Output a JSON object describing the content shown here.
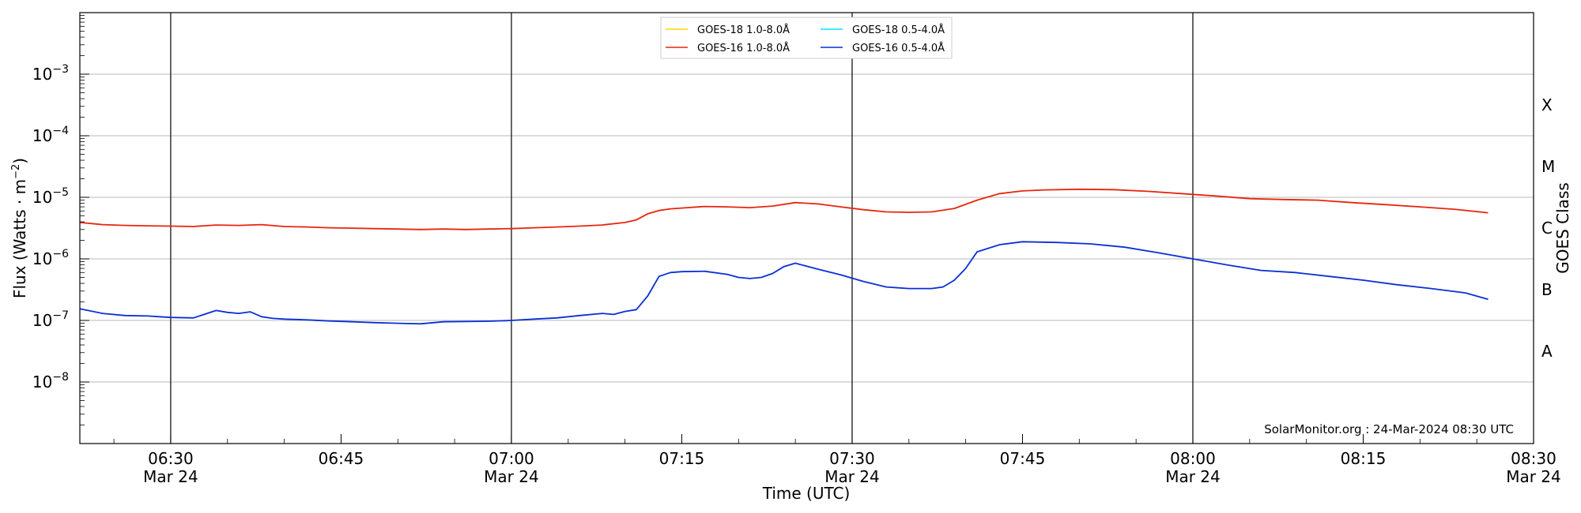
{
  "chart_data": {
    "type": "line",
    "xlabel": "Time (UTC)",
    "ylabel": "Flux (Watts · m",
    "ylabel_sup": "−2",
    "ylabel_end": ")",
    "right_label": "GOES Class",
    "y_scale": "log",
    "ylim": [
      1e-09,
      0.01
    ],
    "y_ticks": [
      {
        "exp": -8,
        "label_base": "10",
        "label_exp": "−8"
      },
      {
        "exp": -7,
        "label_base": "10",
        "label_exp": "−7"
      },
      {
        "exp": -6,
        "label_base": "10",
        "label_exp": "−6"
      },
      {
        "exp": -5,
        "label_base": "10",
        "label_exp": "−5"
      },
      {
        "exp": -4,
        "label_base": "10",
        "label_exp": "−4"
      },
      {
        "exp": -3,
        "label_base": "10",
        "label_exp": "−3"
      }
    ],
    "x_range": [
      "06:22",
      "08:30"
    ],
    "x_ticks": [
      {
        "time": "06:30",
        "label": "06:30",
        "date": "Mar 24"
      },
      {
        "time": "06:45",
        "label": "06:45",
        "date": ""
      },
      {
        "time": "07:00",
        "label": "07:00",
        "date": "Mar 24"
      },
      {
        "time": "07:15",
        "label": "07:15",
        "date": ""
      },
      {
        "time": "07:30",
        "label": "07:30",
        "date": "Mar 24"
      },
      {
        "time": "07:45",
        "label": "07:45",
        "date": ""
      },
      {
        "time": "08:00",
        "label": "08:00",
        "date": "Mar 24"
      },
      {
        "time": "08:15",
        "label": "08:15",
        "date": ""
      },
      {
        "time": "08:30",
        "label": "08:30",
        "date": "Mar 24"
      }
    ],
    "vertical_lines": [
      "06:30",
      "07:00",
      "07:30",
      "08:00"
    ],
    "goes_classes": [
      {
        "label": "A",
        "exp": -7.5
      },
      {
        "label": "B",
        "exp": -6.5
      },
      {
        "label": "C",
        "exp": -5.5
      },
      {
        "label": "M",
        "exp": -4.5
      },
      {
        "label": "X",
        "exp": -3.5
      }
    ],
    "grid": "horizontal",
    "legend_position": "top-center",
    "series": [
      {
        "name": "GOES-18 1.0-8.0Å",
        "color": "#ffd700",
        "x": [],
        "y": []
      },
      {
        "name": "GOES-18 0.5-4.0Å",
        "color": "#00e5ff",
        "x": [],
        "y": []
      },
      {
        "name": "GOES-16 1.0-8.0Å",
        "color": "#e8250c",
        "x": [
          "06:22",
          "06:24",
          "06:26",
          "06:28",
          "06:30",
          "06:32",
          "06:34",
          "06:36",
          "06:38",
          "06:40",
          "06:42",
          "06:44",
          "06:46",
          "06:48",
          "06:50",
          "06:52",
          "06:54",
          "06:56",
          "06:58",
          "07:00",
          "07:02",
          "07:04",
          "07:06",
          "07:08",
          "07:10",
          "07:11",
          "07:12",
          "07:13",
          "07:14",
          "07:15",
          "07:17",
          "07:19",
          "07:21",
          "07:23",
          "07:25",
          "07:27",
          "07:29",
          "07:31",
          "07:33",
          "07:35",
          "07:37",
          "07:39",
          "07:41",
          "07:43",
          "07:45",
          "07:47",
          "07:50",
          "07:53",
          "07:56",
          "07:59",
          "08:02",
          "08:05",
          "08:08",
          "08:11",
          "08:14",
          "08:17",
          "08:20",
          "08:23",
          "08:26"
        ],
        "y": [
          3.9e-06,
          3.6e-06,
          3.5e-06,
          3.45e-06,
          3.4e-06,
          3.35e-06,
          3.55e-06,
          3.5e-06,
          3.6e-06,
          3.35e-06,
          3.3e-06,
          3.2e-06,
          3.15e-06,
          3.1e-06,
          3.05e-06,
          3e-06,
          3.05e-06,
          3e-06,
          3.05e-06,
          3.1e-06,
          3.2e-06,
          3.3e-06,
          3.4e-06,
          3.55e-06,
          3.9e-06,
          4.3e-06,
          5.4e-06,
          6.1e-06,
          6.5e-06,
          6.7e-06,
          7.1e-06,
          7e-06,
          6.8e-06,
          7.2e-06,
          8.2e-06,
          7.8e-06,
          7e-06,
          6.3e-06,
          5.8e-06,
          5.7e-06,
          5.8e-06,
          6.6e-06,
          9e-06,
          1.15e-05,
          1.27e-05,
          1.32e-05,
          1.35e-05,
          1.33e-05,
          1.25e-05,
          1.15e-05,
          1.05e-05,
          9.5e-06,
          9.2e-06,
          9e-06,
          8.2e-06,
          7.6e-06,
          7e-06,
          6.4e-06,
          5.6e-06
        ]
      },
      {
        "name": "GOES-16 0.5-4.0Å",
        "color": "#0a2fd6",
        "x": [
          "06:22",
          "06:24",
          "06:26",
          "06:28",
          "06:29",
          "06:30",
          "06:32",
          "06:34",
          "06:35",
          "06:36",
          "06:37",
          "06:38",
          "06:39",
          "06:40",
          "06:42",
          "06:44",
          "06:46",
          "06:48",
          "06:50",
          "06:52",
          "06:54",
          "06:56",
          "06:58",
          "07:00",
          "07:02",
          "07:04",
          "07:06",
          "07:08",
          "07:09",
          "07:10",
          "07:11",
          "07:12",
          "07:13",
          "07:14",
          "07:15",
          "07:17",
          "07:19",
          "07:20",
          "07:21",
          "07:22",
          "07:23",
          "07:24",
          "07:25",
          "07:27",
          "07:29",
          "07:31",
          "07:33",
          "07:35",
          "07:37",
          "07:38",
          "07:39",
          "07:40",
          "07:41",
          "07:43",
          "07:45",
          "07:48",
          "07:51",
          "07:54",
          "07:57",
          "08:00",
          "08:03",
          "08:06",
          "08:09",
          "08:12",
          "08:15",
          "08:18",
          "08:21",
          "08:24",
          "08:26"
        ],
        "y": [
          1.55e-07,
          1.3e-07,
          1.2e-07,
          1.18e-07,
          1.15e-07,
          1.12e-07,
          1.1e-07,
          1.45e-07,
          1.35e-07,
          1.3e-07,
          1.38e-07,
          1.15e-07,
          1.08e-07,
          1.05e-07,
          1.02e-07,
          9.8e-08,
          9.5e-08,
          9.2e-08,
          9e-08,
          8.8e-08,
          9.5e-08,
          9.6e-08,
          9.7e-08,
          1e-07,
          1.05e-07,
          1.1e-07,
          1.2e-07,
          1.3e-07,
          1.25e-07,
          1.4e-07,
          1.5e-07,
          2.5e-07,
          5.2e-07,
          6e-07,
          6.2e-07,
          6.3e-07,
          5.6e-07,
          5e-07,
          4.8e-07,
          5e-07,
          5.8e-07,
          7.5e-07,
          8.5e-07,
          6.8e-07,
          5.5e-07,
          4.3e-07,
          3.5e-07,
          3.3e-07,
          3.3e-07,
          3.5e-07,
          4.5e-07,
          7e-07,
          1.3e-06,
          1.7e-06,
          1.9e-06,
          1.85e-06,
          1.75e-06,
          1.55e-06,
          1.25e-06,
          1e-06,
          8e-07,
          6.5e-07,
          6e-07,
          5.2e-07,
          4.5e-07,
          3.8e-07,
          3.3e-07,
          2.8e-07,
          2.2e-07
        ]
      }
    ],
    "legend_order": [
      "GOES-18 1.0-8.0Å",
      "GOES-16 1.0-8.0Å",
      "GOES-18 0.5-4.0Å",
      "GOES-16 0.5-4.0Å"
    ],
    "annotation": "SolarMonitor.org : 24-Mar-2024 08:30 UTC"
  }
}
